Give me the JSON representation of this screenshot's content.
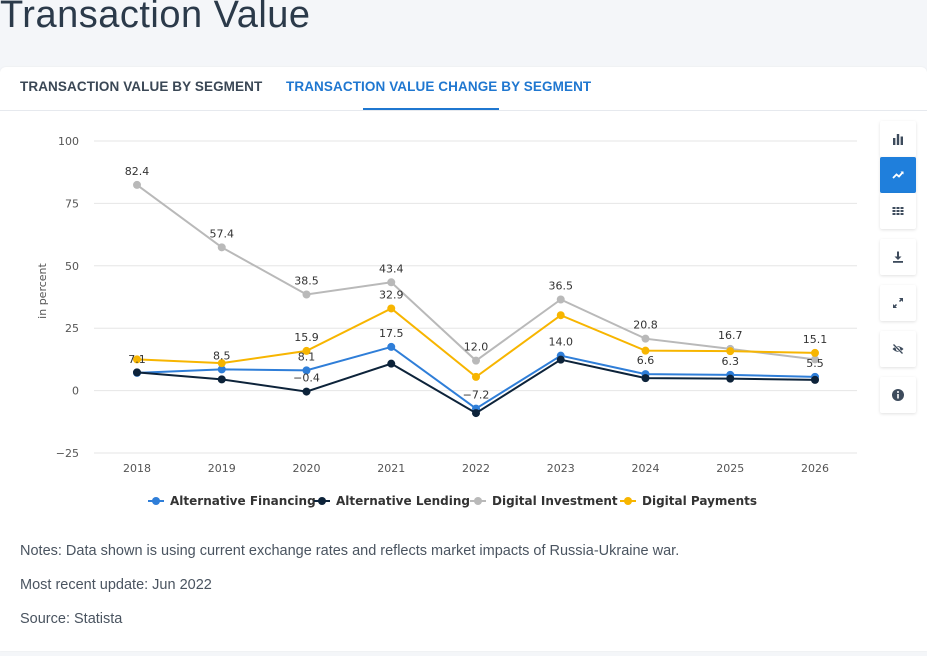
{
  "page": {
    "title": "Transaction Value"
  },
  "tabs": [
    {
      "label": "TRANSACTION VALUE BY SEGMENT",
      "active": false
    },
    {
      "label": "TRANSACTION VALUE CHANGE BY SEGMENT",
      "active": true
    }
  ],
  "toolbar": [
    {
      "icon": "bar-chart-icon",
      "active": false
    },
    {
      "icon": "line-chart-icon",
      "active": true
    },
    {
      "icon": "table-icon",
      "active": false
    },
    {
      "icon": "download-icon",
      "active": false
    },
    {
      "icon": "expand-icon",
      "active": false
    },
    {
      "icon": "hide-icon",
      "active": false
    },
    {
      "icon": "info-icon",
      "active": false
    }
  ],
  "notes": {
    "note": "Notes: Data shown is using current exchange rates and reflects market impacts of Russia-Ukraine war.",
    "update": "Most recent update: Jun 2022",
    "source": "Source: Statista"
  },
  "chart_data": {
    "type": "line",
    "title": "",
    "xlabel": "",
    "ylabel": "in percent",
    "ylim": [
      -25,
      100
    ],
    "yticks": [
      -25,
      0,
      25,
      50,
      75,
      100
    ],
    "grid": true,
    "legend_position": "bottom",
    "categories": [
      "2018",
      "2019",
      "2020",
      "2021",
      "2022",
      "2023",
      "2024",
      "2025",
      "2026"
    ],
    "series": [
      {
        "name": "Alternative Financing",
        "color": "#2f7ed8",
        "values": [
          7.1,
          8.5,
          8.1,
          17.5,
          -7.2,
          14.0,
          6.6,
          6.3,
          5.5
        ],
        "labels": [
          "7.1",
          "8.5",
          "8.1",
          "17.5",
          "−7.2",
          "14.0",
          "6.6",
          "6.3",
          "5.5"
        ]
      },
      {
        "name": "Alternative Lending",
        "color": "#0d233a",
        "values": [
          7.3,
          4.5,
          -0.4,
          10.8,
          -9.0,
          12.4,
          5.0,
          4.8,
          4.3
        ],
        "labels": [
          "",
          "",
          "−0.4",
          "",
          "",
          "",
          "",
          "",
          ""
        ]
      },
      {
        "name": "Digital Investment",
        "color": "#b9b9b9",
        "values": [
          82.4,
          57.4,
          38.5,
          43.4,
          12.0,
          36.5,
          20.8,
          16.7,
          12.5
        ],
        "labels": [
          "82.4",
          "57.4",
          "38.5",
          "43.4",
          "12.0",
          "36.5",
          "20.8",
          "16.7",
          ""
        ]
      },
      {
        "name": "Digital Payments",
        "color": "#f7b500",
        "values": [
          12.5,
          11.0,
          15.9,
          32.9,
          5.5,
          30.2,
          16.0,
          15.8,
          15.1
        ],
        "labels": [
          "",
          "",
          "15.9",
          "32.9",
          "",
          "",
          "",
          "",
          "15.1"
        ]
      }
    ]
  }
}
